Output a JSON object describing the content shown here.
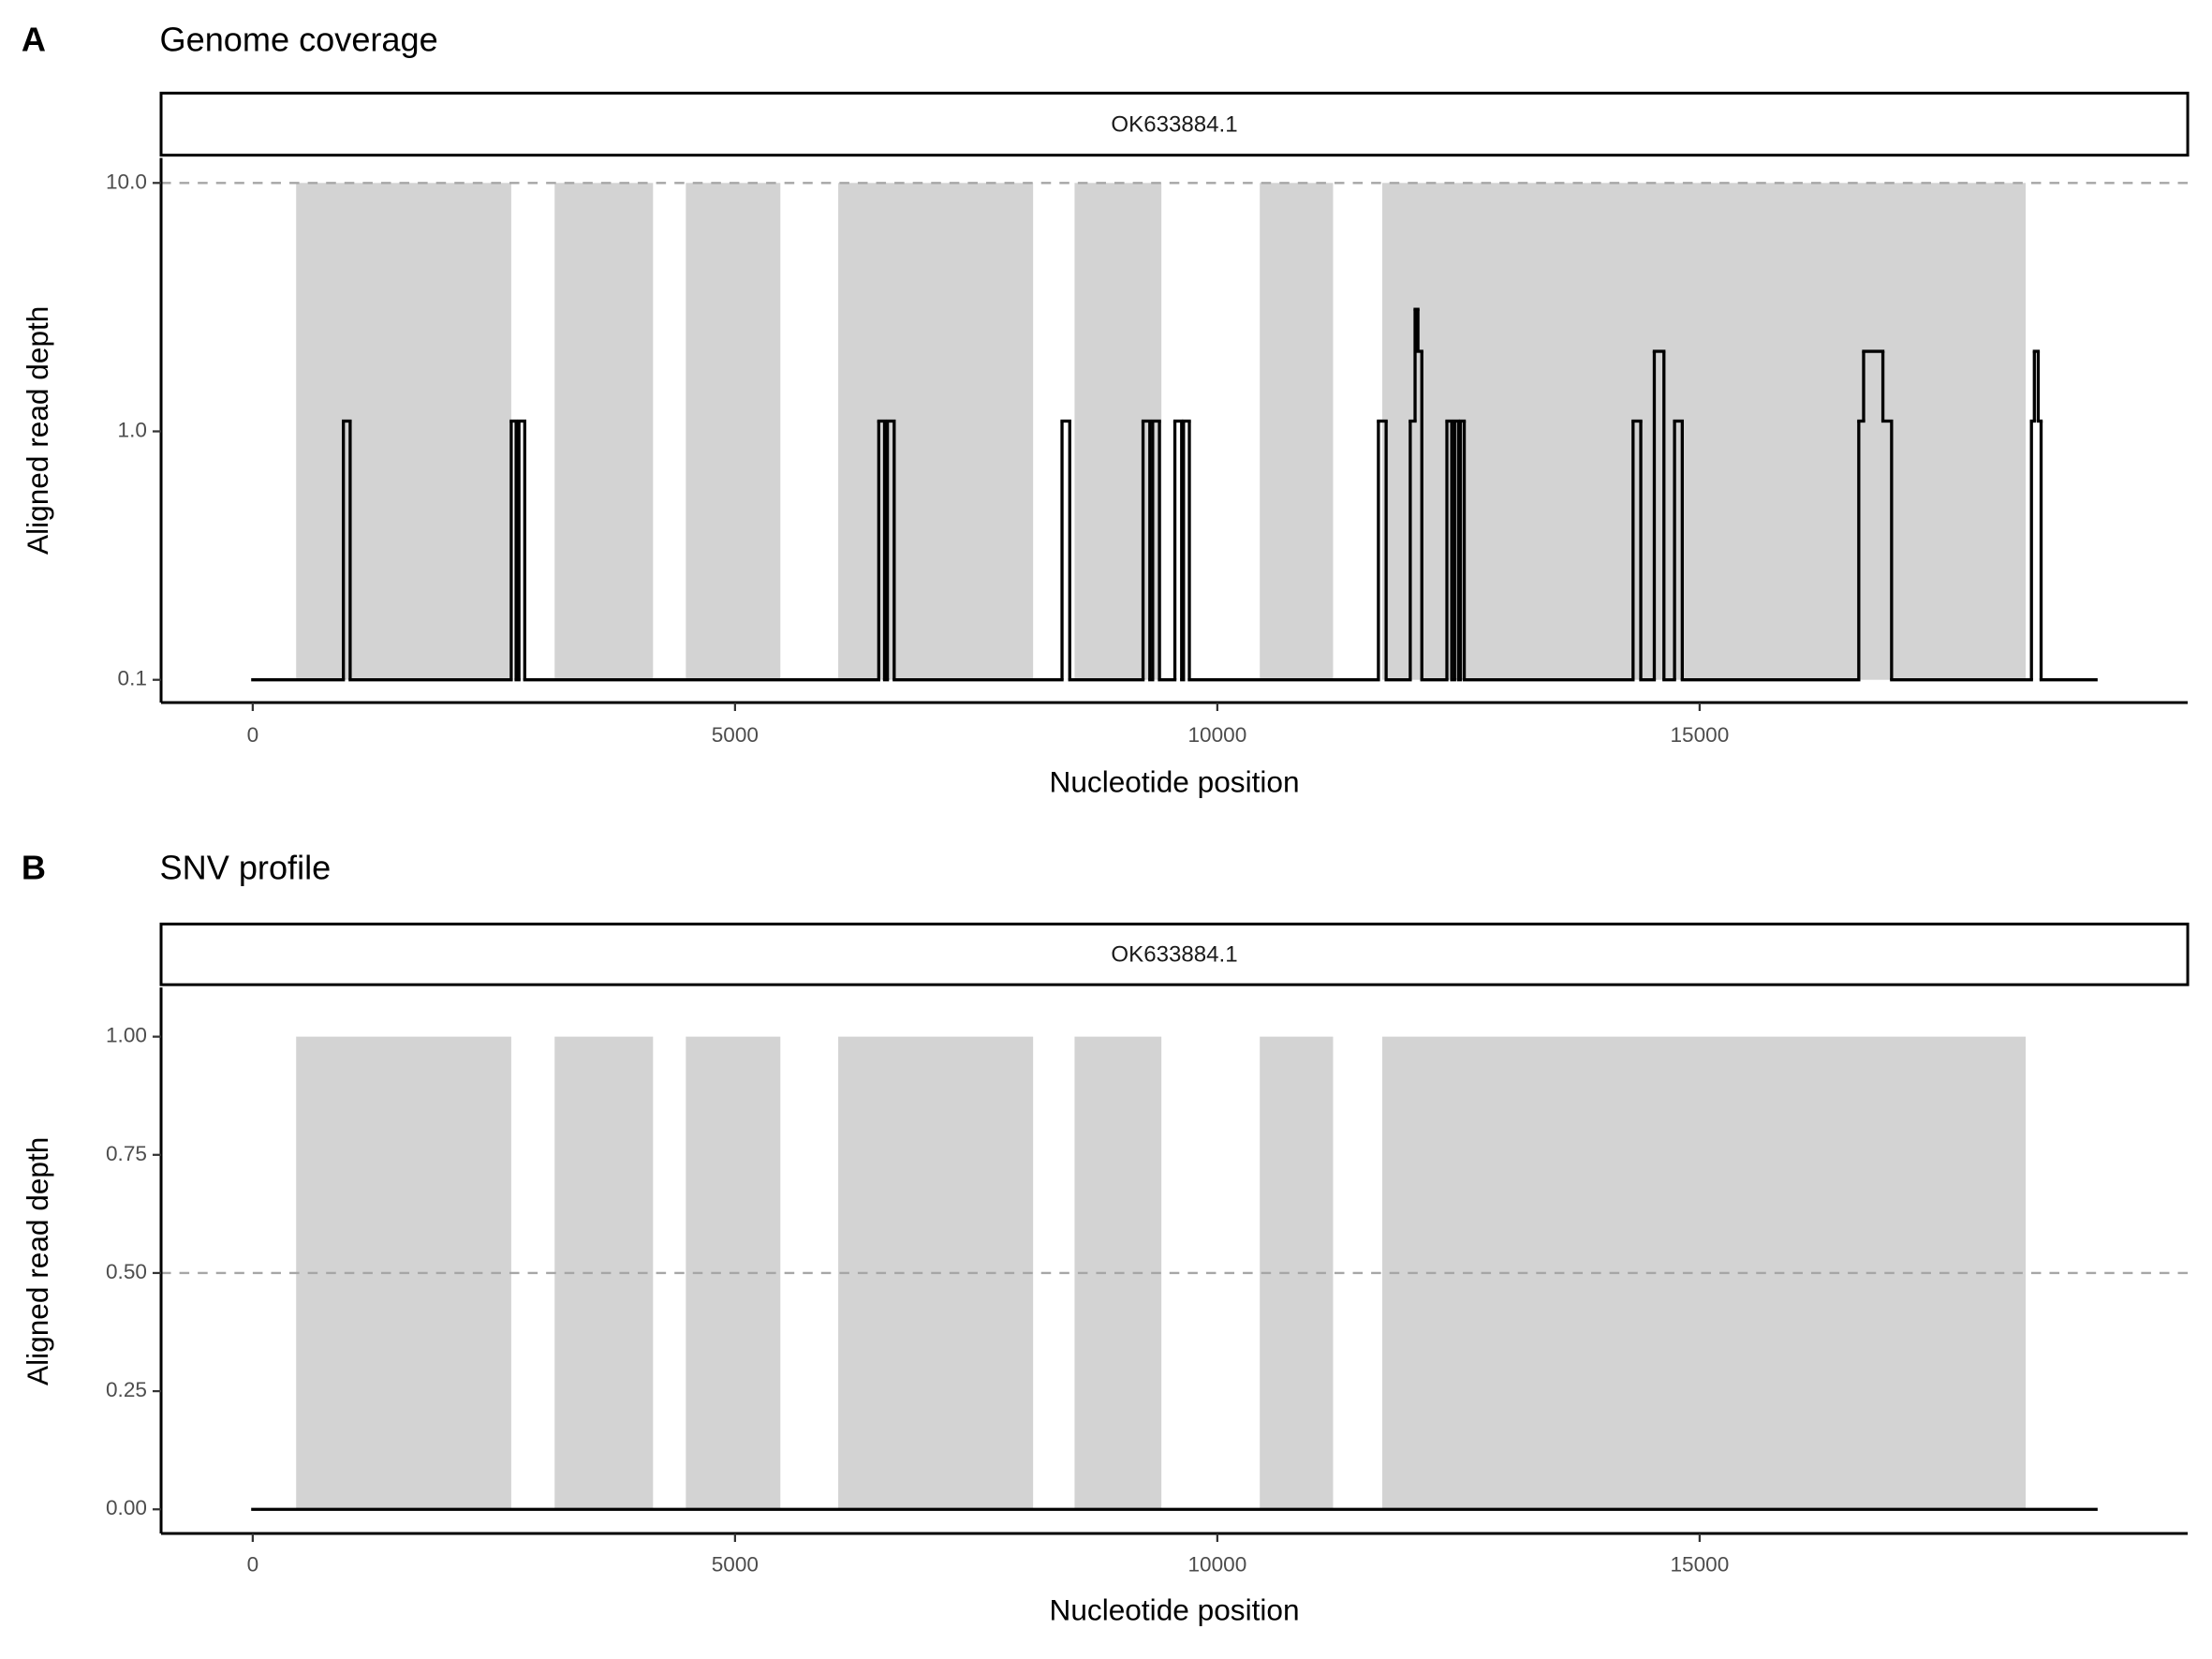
{
  "chart_data": [
    {
      "type": "line",
      "panel_label": "A",
      "title": "Genome coverage",
      "strip": "OK633884.1",
      "x_label": "Nucleotide position",
      "y_label": "Aligned read depth",
      "log_y": true,
      "color": "#000000",
      "region_color": "#d3d3d3",
      "region_bottom": 0.1,
      "region_top": 10,
      "hline": 10,
      "regions": [
        {
          "start": 450,
          "end": 2680
        },
        {
          "start": 3130,
          "end": 4150
        },
        {
          "start": 4490,
          "end": 5470
        },
        {
          "start": 6070,
          "end": 8090
        },
        {
          "start": 8520,
          "end": 9420
        },
        {
          "start": 10440,
          "end": 11200
        },
        {
          "start": 11710,
          "end": 18380
        }
      ],
      "x": [
        0,
        940,
        1010,
        2680,
        2730,
        2760,
        2820,
        6490,
        6550,
        6580,
        6650,
        8390,
        8470,
        9230,
        9300,
        9330,
        9400,
        9560,
        9630,
        9650,
        9710,
        11670,
        11750,
        12000,
        12050,
        12080,
        12120,
        12380,
        12430,
        12460,
        12500,
        12520,
        12560,
        14310,
        14390,
        14530,
        14630,
        14740,
        14820,
        16650,
        16700,
        16900,
        16990,
        18440,
        18470,
        18510,
        18540,
        19110
      ],
      "values": [
        0.1,
        1.1,
        0.1,
        1.1,
        0.1,
        1.1,
        0.1,
        1.1,
        0.1,
        1.1,
        0.1,
        1.1,
        0.1,
        1.1,
        0.1,
        1.1,
        0.1,
        1.1,
        0.1,
        1.1,
        0.1,
        1.1,
        0.1,
        1.1,
        3.1,
        2.1,
        0.1,
        1.1,
        0.1,
        1.1,
        0.1,
        1.1,
        0.1,
        1.1,
        0.1,
        2.1,
        0.1,
        1.1,
        0.1,
        1.1,
        2.1,
        1.1,
        0.1,
        1.1,
        2.1,
        1.1,
        0.1,
        0.1
      ],
      "xlim": [
        -950,
        20060
      ],
      "ylim": [
        0.081,
        12.6
      ],
      "xticks": [
        0,
        5000,
        10000,
        15000
      ],
      "yticks": [
        {
          "value": 0.1,
          "label": "0.1"
        },
        {
          "value": 1,
          "label": "1.0"
        },
        {
          "value": 10,
          "label": "10.0"
        }
      ]
    },
    {
      "type": "line",
      "panel_label": "B",
      "title": "SNV profile",
      "strip": "OK633884.1",
      "x_label": "Nucleotide position",
      "y_label": "Aligned read depth",
      "log_y": false,
      "color": "#000000",
      "region_color": "#d3d3d3",
      "region_bottom": 0,
      "region_top": 1,
      "hline": 0.5,
      "regions": [
        {
          "start": 450,
          "end": 2680
        },
        {
          "start": 3130,
          "end": 4150
        },
        {
          "start": 4490,
          "end": 5470
        },
        {
          "start": 6070,
          "end": 8090
        },
        {
          "start": 8520,
          "end": 9420
        },
        {
          "start": 10440,
          "end": 11200
        },
        {
          "start": 11710,
          "end": 18380
        }
      ],
      "x": [
        0,
        19110
      ],
      "values": [
        0,
        0
      ],
      "xlim": [
        -950,
        20060
      ],
      "ylim": [
        -0.051,
        1.104
      ],
      "xticks": [
        0,
        5000,
        10000,
        15000
      ],
      "yticks": [
        {
          "value": 0,
          "label": "0.00"
        },
        {
          "value": 0.25,
          "label": "0.25"
        },
        {
          "value": 0.5,
          "label": "0.50"
        },
        {
          "value": 0.75,
          "label": "0.75"
        },
        {
          "value": 1,
          "label": "1.00"
        }
      ]
    }
  ]
}
